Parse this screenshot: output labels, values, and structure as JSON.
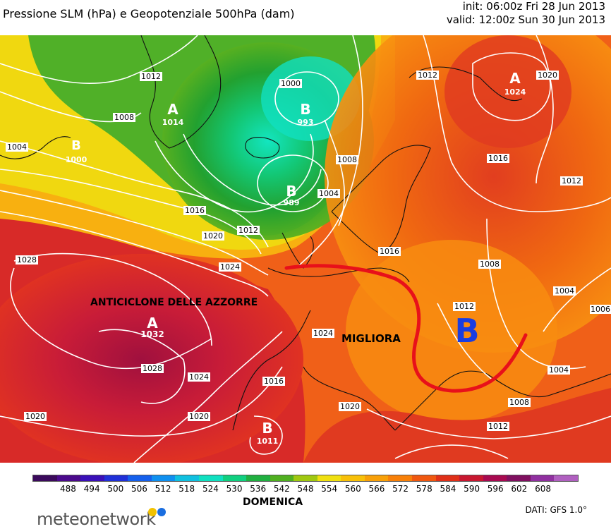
{
  "header": {
    "title": "Pressione SLM (hPa) e Geopotenziale 500hPa (dam)",
    "init": "init: 06:00z Fri 28 Jun 2013",
    "valid": "valid: 12:00z Sun 30 Jun 2013"
  },
  "map": {
    "pressure_centers": [
      {
        "letter": "A",
        "value": "1014"
      },
      {
        "letter": "B",
        "value": "993"
      },
      {
        "letter": "B",
        "value": "989"
      },
      {
        "letter": "A",
        "value": "1024"
      },
      {
        "letter": "A",
        "value": "1032"
      },
      {
        "letter": "B",
        "value": "1011"
      },
      {
        "letter": "B",
        "value": "1000"
      }
    ],
    "isobar_labels": [
      "1012",
      "1008",
      "1004",
      "1000",
      "1008",
      "1004",
      "1012",
      "1016",
      "1020",
      "1024",
      "1012",
      "1020",
      "1016",
      "1012",
      "1008",
      "1004",
      "1028",
      "1024",
      "1028",
      "1024",
      "1020",
      "1020",
      "1016",
      "1012",
      "1008",
      "1004",
      "1006",
      "1020",
      "1012",
      "1016"
    ],
    "annotations": {
      "anticyclone": "ANTICICLONE DELLE AZZORRE",
      "improving": "MIGLIORA",
      "low_mark": "B"
    },
    "colors": {
      "trough_line": "#e8101a",
      "low_mark": "#1a3de0",
      "isobar": "#ffffff"
    }
  },
  "legend": {
    "ticks": [
      "488",
      "494",
      "500",
      "506",
      "512",
      "518",
      "524",
      "530",
      "536",
      "542",
      "548",
      "554",
      "560",
      "566",
      "572",
      "578",
      "584",
      "590",
      "596",
      "602",
      "608"
    ],
    "colors": [
      "#3b0a5c",
      "#4b0a8c",
      "#3a10b8",
      "#2030d8",
      "#1560ec",
      "#0f90f0",
      "#10c0e0",
      "#10e0c0",
      "#10d080",
      "#20b040",
      "#50b020",
      "#a0c810",
      "#f0e010",
      "#f8c008",
      "#f8a008",
      "#f88008",
      "#f05810",
      "#e03018",
      "#c81830",
      "#a80a50",
      "#801060",
      "#9030a0",
      "#b060c0"
    ],
    "caption": "DOMENICA"
  },
  "footer": {
    "brand": "meteonetwork",
    "source": "DATI: GFS 1.0°"
  }
}
